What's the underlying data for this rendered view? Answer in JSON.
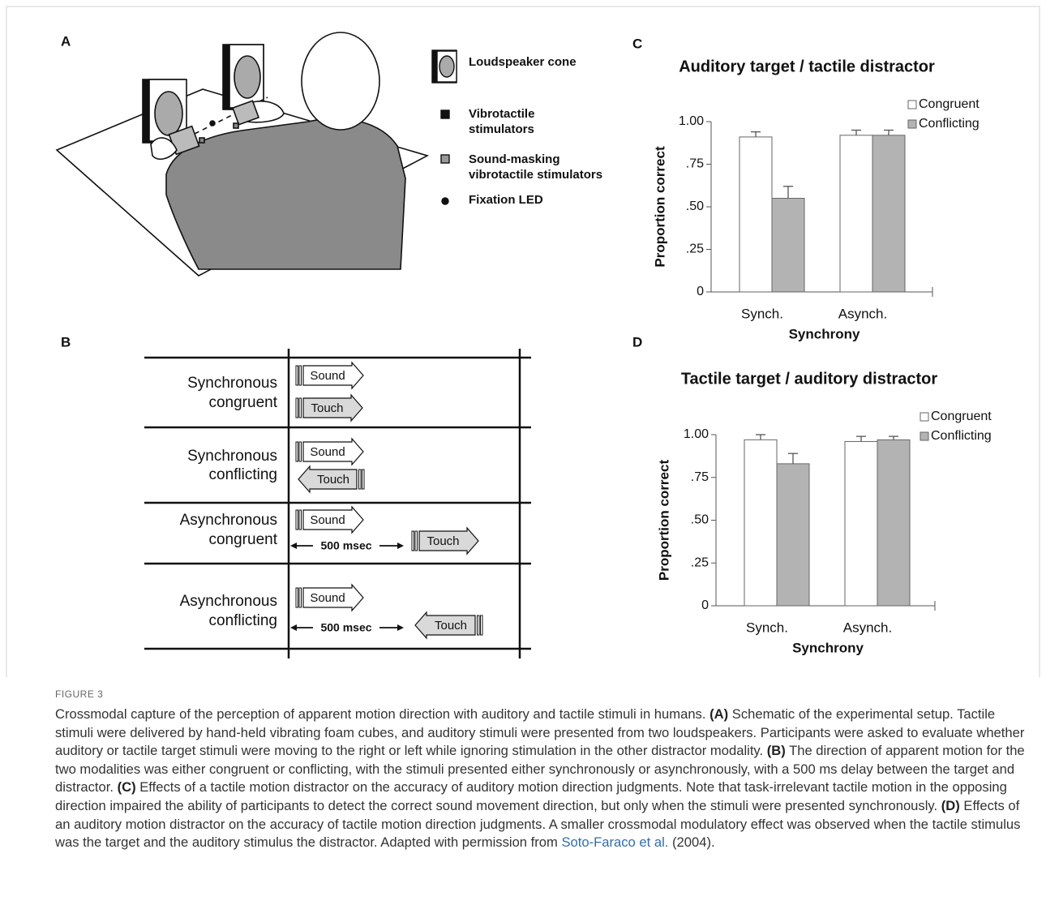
{
  "figure": {
    "panel_a": {
      "label": "A",
      "legend": [
        {
          "lines": [
            "Loudspeaker cone"
          ]
        },
        {
          "lines": [
            "Vibrotactile",
            "stimulators"
          ]
        },
        {
          "lines": [
            "Sound-masking",
            "vibrotactile stimulators"
          ]
        },
        {
          "lines": [
            "Fixation LED"
          ]
        }
      ]
    },
    "panel_b": {
      "label": "B",
      "rows": [
        {
          "lines": [
            "Synchronous",
            "congruent"
          ],
          "sound": "Sound",
          "touch": "Touch"
        },
        {
          "lines": [
            "Synchronous",
            "conflicting"
          ],
          "sound": "Sound",
          "touch": "Touch"
        },
        {
          "lines": [
            "Asynchronous",
            "congruent"
          ],
          "sound": "Sound",
          "touch": "Touch",
          "delay": "500 msec"
        },
        {
          "lines": [
            "Asynchronous",
            "conflicting"
          ],
          "sound": "Sound",
          "touch": "Touch",
          "delay": "500 msec"
        }
      ]
    },
    "panel_c_label": "C",
    "panel_d_label": "D"
  },
  "chart_data": [
    {
      "type": "bar",
      "title": "Auditory target / tactile distractor",
      "x_label": "Synchrony",
      "y_label": "Proportion correct",
      "categories": [
        "Synch.",
        "Asynch."
      ],
      "series": [
        {
          "name": "Congruent",
          "color": "#ffffff",
          "values": [
            0.91,
            0.92
          ],
          "errors": [
            0.03,
            0.03
          ]
        },
        {
          "name": "Conflicting",
          "color": "#b3b3b3",
          "values": [
            0.55,
            0.92
          ],
          "errors": [
            0.07,
            0.03
          ]
        }
      ],
      "ylim": [
        0,
        1
      ],
      "yticks": [
        0,
        {
          "value": 0.25,
          "label": ".25"
        },
        {
          "value": 0.5,
          "label": ".50"
        },
        {
          "value": 0.75,
          "label": ".75"
        },
        {
          "value": 1,
          "label": "1.00"
        }
      ],
      "legend": "top-right"
    },
    {
      "type": "bar",
      "title": "Tactile target / auditory distractor",
      "x_label": "Synchrony",
      "y_label": "Proportion correct",
      "categories": [
        "Synch.",
        "Asynch."
      ],
      "series": [
        {
          "name": "Congruent",
          "color": "#ffffff",
          "values": [
            0.97,
            0.96
          ],
          "errors": [
            0.03,
            0.03
          ]
        },
        {
          "name": "Conflicting",
          "color": "#b3b3b3",
          "values": [
            0.83,
            0.97
          ],
          "errors": [
            0.06,
            0.02
          ]
        }
      ],
      "ylim": [
        0,
        1
      ],
      "yticks": [
        0,
        {
          "value": 0.25,
          "label": ".25"
        },
        {
          "value": 0.5,
          "label": ".50"
        },
        {
          "value": 0.75,
          "label": ".75"
        },
        {
          "value": 1,
          "label": "1.00"
        }
      ],
      "legend": "top-right"
    }
  ],
  "caption": {
    "figure_label": "FIGURE 3",
    "intro": "Crossmodal capture of the perception of apparent motion direction with auditory and tactile stimuli in humans.",
    "parts": [
      {
        "label": "(A)",
        "text": "Schematic of the experimental setup. Tactile stimuli were delivered by hand-held vibrating foam cubes, and auditory stimuli were presented from two loudspeakers. Participants were asked to evaluate whether auditory or tactile target stimuli were moving to the right or left while ignoring stimulation in the other distractor modality."
      },
      {
        "label": "(B)",
        "text": "The direction of apparent motion for the two modalities was either congruent or conflicting, with the stimuli presented either synchronously or asynchronously, with a 500 ms delay between the target and distractor."
      },
      {
        "label": "(C)",
        "text": "Effects of a tactile motion distractor on the accuracy of auditory motion direction judgments. Note that task-irrelevant tactile motion in the opposing direction impaired the ability of participants to detect the correct sound movement direction, but only when the stimuli were presented synchronously."
      },
      {
        "label": "(D)",
        "text": "Effects of an auditory motion distractor on the accuracy of tactile motion direction judgments. A smaller crossmodal modulatory effect was observed when the tactile stimulus was the target and the auditory stimulus the distractor."
      }
    ],
    "source": "Adapted with permission from",
    "authors": "Soto-Faraco et al.",
    "year": "(2004)."
  }
}
